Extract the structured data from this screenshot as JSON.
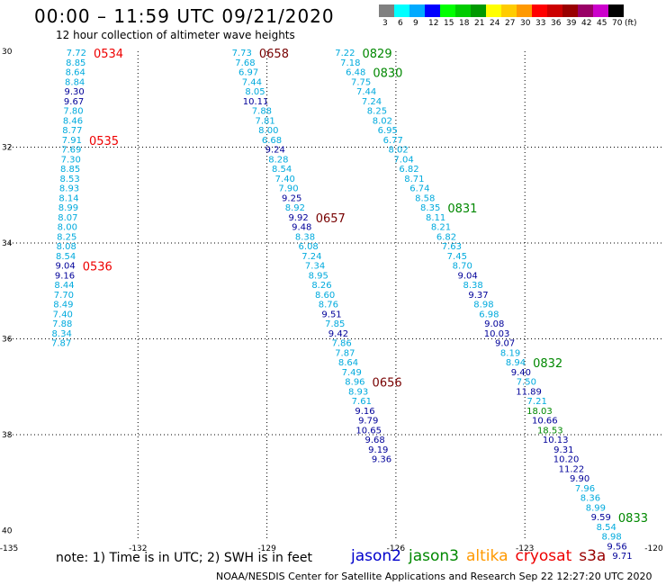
{
  "header": {
    "title": "00:00 – 11:59 UTC 09/21/2020",
    "subtitle": "12 hour collection of altimeter wave heights"
  },
  "legend": {
    "unit": "(ft)",
    "bins": [
      {
        "label": "3",
        "color": "#808080"
      },
      {
        "label": "6",
        "color": "#00ffff"
      },
      {
        "label": "9",
        "color": "#00aaff"
      },
      {
        "label": "12",
        "color": "#0000ff"
      },
      {
        "label": "15",
        "color": "#00ff00"
      },
      {
        "label": "18",
        "color": "#00cc00"
      },
      {
        "label": "21",
        "color": "#009900"
      },
      {
        "label": "24",
        "color": "#ffff00"
      },
      {
        "label": "27",
        "color": "#ffcc00"
      },
      {
        "label": "30",
        "color": "#ff9900"
      },
      {
        "label": "33",
        "color": "#ff0000"
      },
      {
        "label": "36",
        "color": "#cc0000"
      },
      {
        "label": "39",
        "color": "#990000"
      },
      {
        "label": "42",
        "color": "#990066"
      },
      {
        "label": "45",
        "color": "#cc00cc"
      },
      {
        "label": "70",
        "color": "#000000"
      }
    ]
  },
  "map": {
    "lon_ticks": [
      "-135",
      "-132",
      "-129",
      "-126",
      "-123",
      "-120"
    ],
    "lat_ticks": [
      "30",
      "32",
      "34",
      "36",
      "38",
      "40"
    ],
    "colors": {
      "cyan": "#00aadd",
      "blue": "#000099",
      "green": "#008800",
      "red": "#ee0000",
      "maroon": "#770000"
    },
    "tracks": [
      {
        "satellite": "cryosat",
        "lon_start": -133.2,
        "lon_end": -133.55,
        "time_labels": [
          {
            "text": "0534",
            "index": 0,
            "color": "red"
          },
          {
            "text": "0535",
            "index": 9,
            "color": "red"
          },
          {
            "text": "0536",
            "index": 22,
            "color": "red"
          }
        ],
        "values": [
          {
            "v": "7.72",
            "c": "cyan"
          },
          {
            "v": "8.85",
            "c": "cyan"
          },
          {
            "v": "8.64",
            "c": "cyan"
          },
          {
            "v": "8.84",
            "c": "cyan"
          },
          {
            "v": "9.30",
            "c": "blue"
          },
          {
            "v": "9.67",
            "c": "blue"
          },
          {
            "v": "7.80",
            "c": "cyan"
          },
          {
            "v": "8.46",
            "c": "cyan"
          },
          {
            "v": "8.77",
            "c": "cyan"
          },
          {
            "v": "7.91",
            "c": "cyan"
          },
          {
            "v": "7.69",
            "c": "cyan"
          },
          {
            "v": "7.30",
            "c": "cyan"
          },
          {
            "v": "8.85",
            "c": "cyan"
          },
          {
            "v": "8.53",
            "c": "cyan"
          },
          {
            "v": "8.93",
            "c": "cyan"
          },
          {
            "v": "8.14",
            "c": "cyan"
          },
          {
            "v": "8.99",
            "c": "cyan"
          },
          {
            "v": "8.07",
            "c": "cyan"
          },
          {
            "v": "8.00",
            "c": "cyan"
          },
          {
            "v": "8.25",
            "c": "cyan"
          },
          {
            "v": "8.08",
            "c": "cyan"
          },
          {
            "v": "8.54",
            "c": "cyan"
          },
          {
            "v": "9.04",
            "c": "blue"
          },
          {
            "v": "9.16",
            "c": "blue"
          },
          {
            "v": "8.44",
            "c": "cyan"
          },
          {
            "v": "7.70",
            "c": "cyan"
          },
          {
            "v": "8.49",
            "c": "cyan"
          },
          {
            "v": "7.40",
            "c": "cyan"
          },
          {
            "v": "7.88",
            "c": "cyan"
          },
          {
            "v": "8.34",
            "c": "cyan"
          },
          {
            "v": "7.87",
            "c": "cyan"
          }
        ]
      },
      {
        "satellite": "s3a",
        "lon_start": -129.35,
        "lon_end": -126.1,
        "time_labels": [
          {
            "text": "0658",
            "index": 0,
            "color": "maroon"
          },
          {
            "text": "0657",
            "index": 17,
            "color": "maroon"
          },
          {
            "text": "0656",
            "index": 34,
            "color": "maroon"
          }
        ],
        "values": [
          {
            "v": "7.73",
            "c": "cyan"
          },
          {
            "v": "7.68",
            "c": "cyan"
          },
          {
            "v": "6.97",
            "c": "cyan"
          },
          {
            "v": "7.44",
            "c": "cyan"
          },
          {
            "v": "8.05",
            "c": "cyan"
          },
          {
            "v": "10.11",
            "c": "blue"
          },
          {
            "v": "7.88",
            "c": "cyan"
          },
          {
            "v": "7.81",
            "c": "cyan"
          },
          {
            "v": "8.00",
            "c": "cyan"
          },
          {
            "v": "6.68",
            "c": "cyan"
          },
          {
            "v": "9.24",
            "c": "blue"
          },
          {
            "v": "8.28",
            "c": "cyan"
          },
          {
            "v": "8.54",
            "c": "cyan"
          },
          {
            "v": "7.40",
            "c": "cyan"
          },
          {
            "v": "7.90",
            "c": "cyan"
          },
          {
            "v": "9.25",
            "c": "blue"
          },
          {
            "v": "8.92",
            "c": "cyan"
          },
          {
            "v": "9.92",
            "c": "blue"
          },
          {
            "v": "9.48",
            "c": "blue"
          },
          {
            "v": "8.38",
            "c": "cyan"
          },
          {
            "v": "6.08",
            "c": "cyan"
          },
          {
            "v": "7.24",
            "c": "cyan"
          },
          {
            "v": "7.34",
            "c": "cyan"
          },
          {
            "v": "8.95",
            "c": "cyan"
          },
          {
            "v": "8.26",
            "c": "cyan"
          },
          {
            "v": "8.60",
            "c": "cyan"
          },
          {
            "v": "8.76",
            "c": "cyan"
          },
          {
            "v": "9.51",
            "c": "blue"
          },
          {
            "v": "7.85",
            "c": "cyan"
          },
          {
            "v": "9.42",
            "c": "blue"
          },
          {
            "v": "7.86",
            "c": "cyan"
          },
          {
            "v": "7.87",
            "c": "cyan"
          },
          {
            "v": "8.64",
            "c": "cyan"
          },
          {
            "v": "7.49",
            "c": "cyan"
          },
          {
            "v": "8.96",
            "c": "cyan"
          },
          {
            "v": "8.93",
            "c": "cyan"
          },
          {
            "v": "7.61",
            "c": "cyan"
          },
          {
            "v": "9.16",
            "c": "blue"
          },
          {
            "v": "9.79",
            "c": "blue"
          },
          {
            "v": "10.65",
            "c": "blue"
          },
          {
            "v": "9.68",
            "c": "blue"
          },
          {
            "v": "9.19",
            "c": "blue"
          },
          {
            "v": "9.36",
            "c": "blue"
          }
        ]
      },
      {
        "satellite": "jason3",
        "lon_start": -126.95,
        "lon_end": -120.5,
        "time_labels": [
          {
            "text": "0829",
            "index": 0,
            "color": "green"
          },
          {
            "text": "0830",
            "index": 2,
            "color": "green"
          },
          {
            "text": "0831",
            "index": 16,
            "color": "green"
          },
          {
            "text": "0832",
            "index": 32,
            "color": "green"
          },
          {
            "text": "0833",
            "index": 48,
            "color": "green"
          }
        ],
        "values": [
          {
            "v": "7.22",
            "c": "cyan"
          },
          {
            "v": "7.18",
            "c": "cyan"
          },
          {
            "v": "6.48",
            "c": "cyan"
          },
          {
            "v": "7.75",
            "c": "cyan"
          },
          {
            "v": "7.44",
            "c": "cyan"
          },
          {
            "v": "7.24",
            "c": "cyan"
          },
          {
            "v": "8.25",
            "c": "cyan"
          },
          {
            "v": "8.02",
            "c": "cyan"
          },
          {
            "v": "6.95",
            "c": "cyan"
          },
          {
            "v": "6.77",
            "c": "cyan"
          },
          {
            "v": "8.02",
            "c": "cyan"
          },
          {
            "v": "7.04",
            "c": "cyan"
          },
          {
            "v": "6.82",
            "c": "cyan"
          },
          {
            "v": "8.71",
            "c": "cyan"
          },
          {
            "v": "6.74",
            "c": "cyan"
          },
          {
            "v": "8.58",
            "c": "cyan"
          },
          {
            "v": "8.35",
            "c": "cyan"
          },
          {
            "v": "8.11",
            "c": "cyan"
          },
          {
            "v": "8.21",
            "c": "cyan"
          },
          {
            "v": "6.82",
            "c": "cyan"
          },
          {
            "v": "7.63",
            "c": "cyan"
          },
          {
            "v": "7.45",
            "c": "cyan"
          },
          {
            "v": "8.70",
            "c": "cyan"
          },
          {
            "v": "9.04",
            "c": "blue"
          },
          {
            "v": "8.38",
            "c": "cyan"
          },
          {
            "v": "9.37",
            "c": "blue"
          },
          {
            "v": "8.98",
            "c": "cyan"
          },
          {
            "v": "6.98",
            "c": "cyan"
          },
          {
            "v": "9.08",
            "c": "blue"
          },
          {
            "v": "10.03",
            "c": "blue"
          },
          {
            "v": "9.07",
            "c": "blue"
          },
          {
            "v": "8.19",
            "c": "cyan"
          },
          {
            "v": "8.94",
            "c": "cyan"
          },
          {
            "v": "9.40",
            "c": "blue"
          },
          {
            "v": "7.50",
            "c": "cyan"
          },
          {
            "v": "11.89",
            "c": "blue"
          },
          {
            "v": "7.21",
            "c": "cyan"
          },
          {
            "v": "18.03",
            "c": "green"
          },
          {
            "v": "10.66",
            "c": "blue"
          },
          {
            "v": "18.53",
            "c": "green"
          },
          {
            "v": "10.13",
            "c": "blue"
          },
          {
            "v": "9.31",
            "c": "blue"
          },
          {
            "v": "10.20",
            "c": "blue"
          },
          {
            "v": "11.22",
            "c": "blue"
          },
          {
            "v": "9.90",
            "c": "blue"
          },
          {
            "v": "7.96",
            "c": "cyan"
          },
          {
            "v": "8.36",
            "c": "cyan"
          },
          {
            "v": "8.99",
            "c": "cyan"
          },
          {
            "v": "9.59",
            "c": "blue"
          },
          {
            "v": "8.54",
            "c": "cyan"
          },
          {
            "v": "8.98",
            "c": "cyan"
          },
          {
            "v": "9.56",
            "c": "blue"
          },
          {
            "v": "9.71",
            "c": "blue"
          }
        ]
      }
    ]
  },
  "footer": {
    "note": "note:  1) Time is in UTC;  2) SWH is in feet",
    "satellites": [
      {
        "name": "jason2",
        "color": "#0000cc"
      },
      {
        "name": "jason3",
        "color": "#008800"
      },
      {
        "name": "altika",
        "color": "#ff9900"
      },
      {
        "name": "cryosat",
        "color": "#ee0000"
      },
      {
        "name": "s3a",
        "color": "#990000"
      }
    ],
    "credit": "NOAA/NESDIS Center for Satellite Applications and Research   Sep 22 12:27:20 UTC 2020"
  }
}
